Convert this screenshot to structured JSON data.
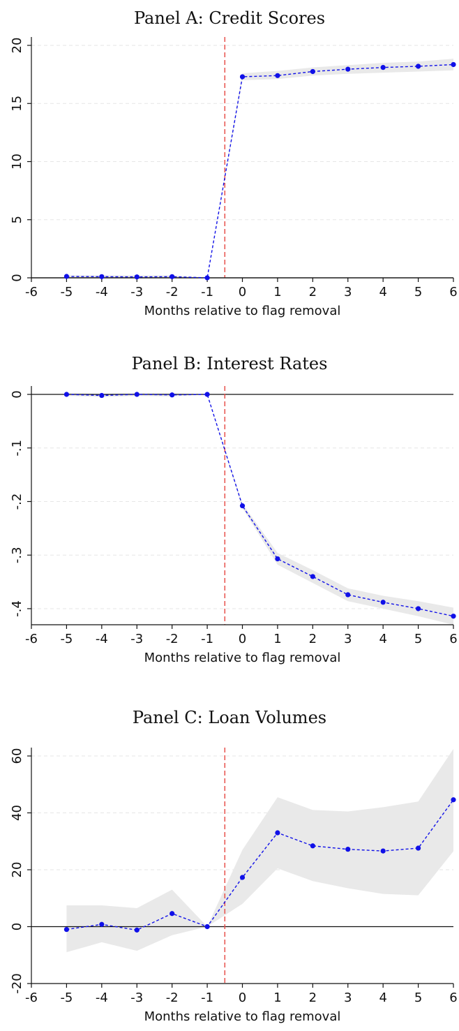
{
  "chart_data": [
    {
      "type": "line",
      "title": "Panel A: Credit Scores",
      "xlabel": "Months relative to flag removal",
      "ylabel": "",
      "xlim": [
        -6,
        6
      ],
      "ylim": [
        0,
        20
      ],
      "xticks": [
        "-6",
        "-5",
        "-4",
        "-3",
        "-2",
        "-1",
        "0",
        "1",
        "2",
        "3",
        "4",
        "5",
        "6"
      ],
      "yticks": [
        "0",
        "5",
        "10",
        "15",
        "20"
      ],
      "ytick_values": [
        0,
        5,
        10,
        15,
        20
      ],
      "grid": true,
      "vline_x": -0.5,
      "x": [
        -5,
        -4,
        -3,
        -2,
        -1,
        0,
        1,
        2,
        3,
        4,
        5,
        6
      ],
      "series": [
        {
          "values": [
            0.12,
            0.1,
            0.08,
            0.1,
            0.0,
            17.3,
            17.4,
            17.75,
            17.95,
            18.1,
            18.2,
            18.35
          ],
          "ci_low": [
            0.0,
            0.0,
            0.0,
            0.0,
            0.0,
            17.0,
            17.1,
            17.4,
            17.55,
            17.65,
            17.75,
            17.85
          ],
          "ci_high": [
            0.2,
            0.2,
            0.2,
            0.2,
            0.0,
            17.6,
            17.8,
            18.1,
            18.3,
            18.5,
            18.6,
            18.85
          ]
        }
      ]
    },
    {
      "type": "line",
      "title": "Panel B: Interest Rates",
      "xlabel": "Months relative to flag removal",
      "ylabel": "",
      "xlim": [
        -6,
        6
      ],
      "ylim": [
        -0.43,
        0.0
      ],
      "xticks": [
        "-6",
        "-5",
        "-4",
        "-3",
        "-2",
        "-1",
        "0",
        "1",
        "2",
        "3",
        "4",
        "5",
        "6"
      ],
      "yticks": [
        "0",
        "-.1",
        "-.2",
        "-.3",
        "-.4"
      ],
      "ytick_values": [
        0,
        -0.1,
        -0.2,
        -0.3,
        -0.4
      ],
      "grid": true,
      "vline_x": -0.5,
      "x": [
        -5,
        -4,
        -3,
        -2,
        -1,
        0,
        1,
        2,
        3,
        4,
        5,
        6
      ],
      "series": [
        {
          "values": [
            0.0,
            -0.002,
            0.0,
            -0.001,
            0.0,
            -0.208,
            -0.307,
            -0.34,
            -0.374,
            -0.388,
            -0.4,
            -0.414
          ],
          "ci_low": [
            -0.003,
            -0.005,
            -0.003,
            -0.004,
            0.0,
            -0.212,
            -0.318,
            -0.352,
            -0.386,
            -0.4,
            -0.414,
            -0.43
          ],
          "ci_high": [
            0.003,
            0.001,
            0.003,
            0.002,
            0.0,
            -0.204,
            -0.296,
            -0.328,
            -0.362,
            -0.376,
            -0.386,
            -0.398
          ]
        }
      ]
    },
    {
      "type": "line",
      "title": "Panel C: Loan Volumes",
      "xlabel": "Months relative to flag removal",
      "ylabel": "",
      "xlim": [
        -6,
        6
      ],
      "ylim": [
        -20,
        60
      ],
      "xticks": [
        "-6",
        "-5",
        "-4",
        "-3",
        "-2",
        "-1",
        "0",
        "1",
        "2",
        "3",
        "4",
        "5",
        "6"
      ],
      "yticks": [
        "-20",
        "0",
        "20",
        "40",
        "60"
      ],
      "ytick_values": [
        -20,
        0,
        20,
        40,
        60
      ],
      "grid": true,
      "vline_x": -0.5,
      "x": [
        -5,
        -4,
        -3,
        -2,
        -1,
        0,
        1,
        2,
        3,
        4,
        5,
        6
      ],
      "series": [
        {
          "values": [
            -1.0,
            0.8,
            -1.2,
            4.6,
            0.0,
            17.3,
            33.0,
            28.4,
            27.2,
            26.6,
            27.6,
            44.6
          ],
          "ci_low": [
            -9.0,
            -5.5,
            -8.5,
            -3.0,
            0.0,
            8.0,
            20.5,
            16.0,
            13.5,
            11.5,
            11.0,
            26.5
          ],
          "ci_high": [
            7.5,
            7.5,
            6.5,
            13.0,
            0.0,
            27.0,
            45.5,
            41.0,
            40.5,
            42.0,
            44.0,
            62.5
          ]
        }
      ]
    }
  ],
  "colors": {
    "series": "#1010e8",
    "ci_band": "#e9e9e9",
    "vline": "#e8504a",
    "zero_line": "#111111",
    "grid": "#e6e6e6"
  }
}
